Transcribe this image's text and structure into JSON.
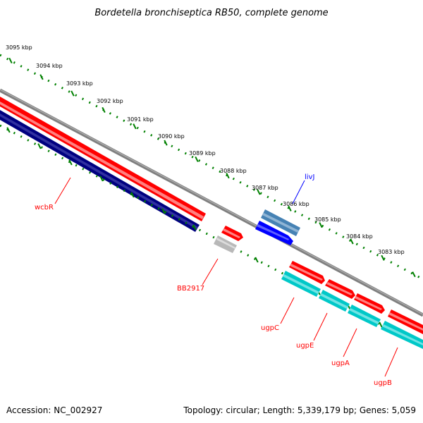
{
  "title": "Bordetella bronchiseptica RB50, complete genome",
  "footer": {
    "accession": "Accession: NC_002927",
    "topology": "Topology: circular; Length: 5,339,179 bp; Genes: 5,059"
  },
  "ticks": [
    {
      "label": "3095 kbp"
    },
    {
      "label": "3094 kbp"
    },
    {
      "label": "3093 kbp"
    },
    {
      "label": "3092 kbp"
    },
    {
      "label": "3091 kbp"
    },
    {
      "label": "3090 kbp"
    },
    {
      "label": "3089 kbp"
    },
    {
      "label": "3088 kbp"
    },
    {
      "label": "3087 kbp"
    },
    {
      "label": "3086 kbp"
    },
    {
      "label": "3085 kbp"
    },
    {
      "label": "3084 kbp"
    },
    {
      "label": "3083 kbp"
    }
  ],
  "gene_labels": {
    "wcbR": "wcbR",
    "BB2917": "BB2917",
    "livJ": "livJ",
    "ugpC": "ugpC",
    "ugpE": "ugpE",
    "ugpA": "ugpA",
    "ugpB": "ugpB"
  },
  "colors": {
    "backbone": "#808080",
    "forward_cds": "#ff0000",
    "reverse_cds": "#0000ff",
    "navy_feature": "#000080",
    "steel_feature": "#4682b4",
    "cyan_feature": "#00c8c8",
    "grey_feature": "#b8b8b8",
    "tick_green": "#008000",
    "label_red": "#ff0000",
    "label_blue": "#0000ff"
  }
}
